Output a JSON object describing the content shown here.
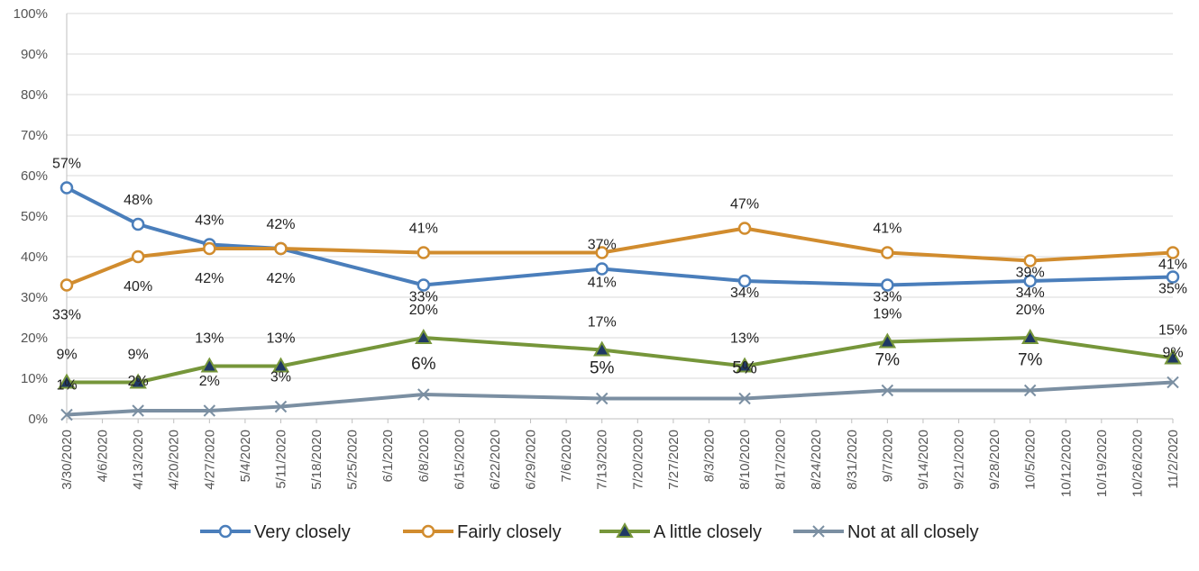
{
  "chart_data": {
    "type": "line",
    "x_dates": [
      "3/30/2020",
      "4/13/2020",
      "4/27/2020",
      "5/11/2020",
      "6/8/2020",
      "7/13/2020",
      "8/10/2020",
      "9/7/2020",
      "10/5/2020",
      "11/2/2020"
    ],
    "x_ticks": [
      "3/30/2020",
      "4/6/2020",
      "4/13/2020",
      "4/20/2020",
      "4/27/2020",
      "5/4/2020",
      "5/11/2020",
      "5/18/2020",
      "5/25/2020",
      "6/1/2020",
      "6/8/2020",
      "6/15/2020",
      "6/22/2020",
      "6/29/2020",
      "7/6/2020",
      "7/13/2020",
      "7/20/2020",
      "7/27/2020",
      "8/3/2020",
      "8/10/2020",
      "8/17/2020",
      "8/24/2020",
      "8/31/2020",
      "9/7/2020",
      "9/14/2020",
      "9/21/2020",
      "9/28/2020",
      "10/5/2020",
      "10/12/2020",
      "10/19/2020",
      "10/26/2020",
      "11/2/2020"
    ],
    "y_ticks": [
      "0%",
      "10%",
      "20%",
      "30%",
      "40%",
      "50%",
      "60%",
      "70%",
      "80%",
      "90%",
      "100%"
    ],
    "ylim": [
      0,
      100
    ],
    "grid": "horizontal",
    "legend_position": "bottom",
    "series": [
      {
        "name": "Very closely",
        "color": "#4a7ebb",
        "marker": "circle",
        "values": [
          57,
          48,
          43,
          42,
          33,
          37,
          34,
          33,
          34,
          35
        ],
        "labels": [
          "57%",
          "48%",
          "43%",
          "42%",
          "33%",
          "37%",
          "34%",
          "33%",
          "34%",
          "35%"
        ]
      },
      {
        "name": "Fairly closely",
        "color": "#d18c2e",
        "marker": "circle",
        "values": [
          33,
          40,
          42,
          42,
          41,
          41,
          47,
          41,
          39,
          41
        ],
        "labels": [
          "33%",
          "40%",
          "42%",
          "42%",
          "41%",
          "41%",
          "47%",
          "41%",
          "39%",
          "41%"
        ]
      },
      {
        "name": "A little closely",
        "color": "#76963a",
        "marker": "triangle",
        "values": [
          9,
          9,
          13,
          13,
          20,
          17,
          13,
          19,
          20,
          15
        ],
        "labels": [
          "9%",
          "9%",
          "13%",
          "13%",
          "20%",
          "17%",
          "13%",
          "19%",
          "20%",
          "15%"
        ]
      },
      {
        "name": "Not at all closely",
        "color": "#7b8fa2",
        "marker": "x",
        "values": [
          1,
          2,
          2,
          3,
          6,
          5,
          5,
          7,
          7,
          9
        ],
        "labels": [
          "1%",
          "2%",
          "2%",
          "3%",
          "6%",
          "5%",
          "5%",
          "7%",
          "7%",
          "9%"
        ]
      }
    ]
  }
}
